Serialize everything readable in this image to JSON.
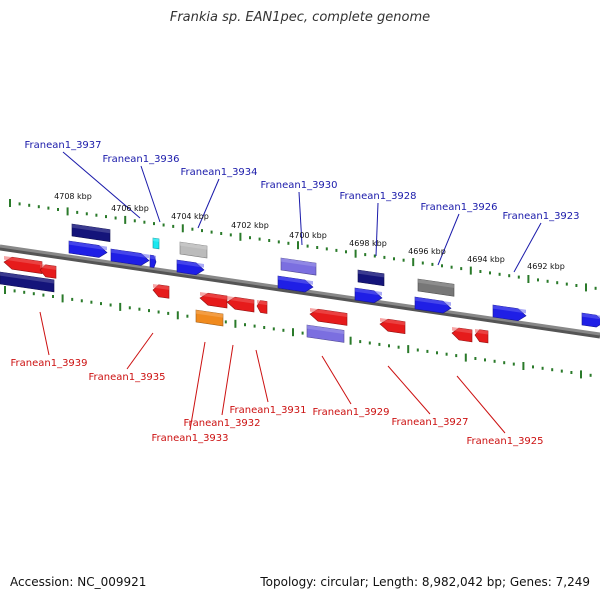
{
  "title": "Frankia sp. EAN1pec, complete genome",
  "footer": {
    "accession": "Accession: NC_009921",
    "topology": "Topology: circular; Length: 8,982,042 bp; Genes: 7,249"
  },
  "colors": {
    "top_label": "#1a1aaa",
    "bottom_label": "#cc1111",
    "ruler": "#2a7a2a",
    "backbone": "#888888"
  },
  "ruler_labels": [
    "4708 kbp",
    "4706 kbp",
    "4704 kbp",
    "4702 kbp",
    "4700 kbp",
    "4698 kbp",
    "4696 kbp",
    "4694 kbp",
    "4692 kbp"
  ],
  "top_labels": [
    "Franean1_3937",
    "Franean1_3936",
    "Franean1_3934",
    "Franean1_3930",
    "Franean1_3928",
    "Franean1_3926",
    "Franean1_3923"
  ],
  "bottom_labels": [
    "Franean1_3939",
    "Franean1_3935",
    "Franean1_3933",
    "Franean1_3932",
    "Franean1_3931",
    "Franean1_3929",
    "Franean1_3927",
    "Franean1_3925"
  ]
}
